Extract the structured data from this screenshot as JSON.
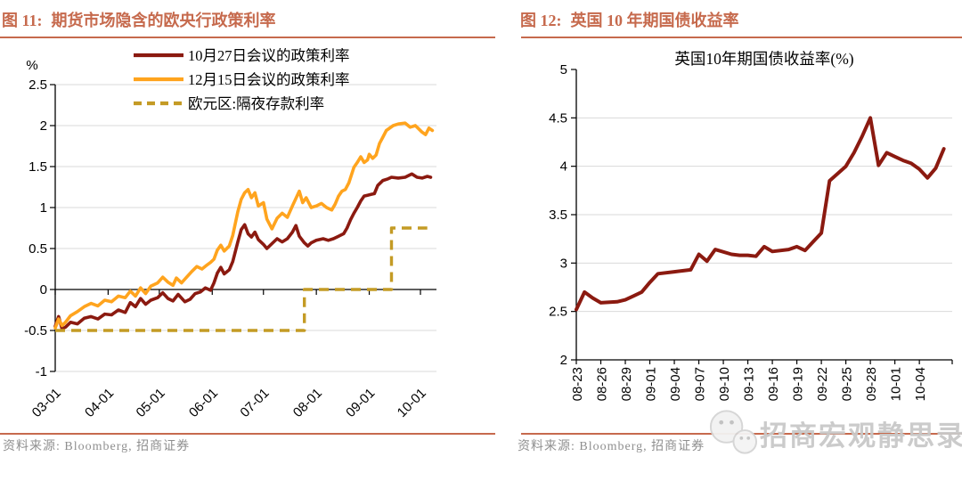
{
  "page": {
    "background": "#FFFFFF",
    "accent_color": "#C66A4D"
  },
  "panels": [
    {
      "figure_label": "图 11:",
      "figure_title": "期货市场隐含的欧央行政策利率",
      "source_note": "资料来源: Bloomberg, 招商证券"
    },
    {
      "figure_label": "图 12:",
      "figure_title": "英国 10 年期国债收益率",
      "source_note": "资料来源: Bloomberg, 招商证券"
    }
  ],
  "watermark": {
    "text": "招商宏观静思录",
    "icon": "wechat-logo",
    "color": "#C9C9C9"
  },
  "chart_data": [
    {
      "type": "line",
      "title": "期货市场隐含的欧央行政策利率",
      "ylabel": "%",
      "ylim": [
        -1,
        2.5
      ],
      "grid": true,
      "legend_position": "top-center",
      "x_unit": "days since 03-01",
      "yticks": [
        {
          "label": "2.5",
          "v": 2.5
        },
        {
          "label": "2",
          "v": 2
        },
        {
          "label": "1.5",
          "v": 1.5
        },
        {
          "label": "1",
          "v": 1
        },
        {
          "label": "0.5",
          "v": 0.5
        },
        {
          "label": "0",
          "v": 0
        },
        {
          "label": "-0.5",
          "v": -0.5
        },
        {
          "label": "-1",
          "v": -1
        }
      ],
      "xticks": [
        {
          "label": "03-01",
          "day": 0
        },
        {
          "label": "04-01",
          "day": 31
        },
        {
          "label": "05-01",
          "day": 61
        },
        {
          "label": "06-01",
          "day": 92
        },
        {
          "label": "07-01",
          "day": 122
        },
        {
          "label": "08-01",
          "day": 153
        },
        {
          "label": "09-01",
          "day": 184
        },
        {
          "label": "10-01",
          "day": 214
        }
      ],
      "series": [
        {
          "name": "10月27日会议的政策利率",
          "color": "#8B1A10",
          "dash": "",
          "width": 3.6,
          "points": [
            [
              0,
              -0.45
            ],
            [
              2,
              -0.33
            ],
            [
              4,
              -0.48
            ],
            [
              6,
              -0.46
            ],
            [
              9,
              -0.4
            ],
            [
              13,
              -0.42
            ],
            [
              17,
              -0.35
            ],
            [
              21,
              -0.33
            ],
            [
              25,
              -0.36
            ],
            [
              29,
              -0.3
            ],
            [
              33,
              -0.31
            ],
            [
              37,
              -0.25
            ],
            [
              41,
              -0.28
            ],
            [
              44,
              -0.16
            ],
            [
              47,
              -0.21
            ],
            [
              50,
              -0.11
            ],
            [
              53,
              -0.18
            ],
            [
              56,
              -0.13
            ],
            [
              60,
              -0.1
            ],
            [
              63,
              -0.04
            ],
            [
              66,
              -0.11
            ],
            [
              69,
              -0.14
            ],
            [
              72,
              -0.06
            ],
            [
              76,
              -0.15
            ],
            [
              79,
              -0.12
            ],
            [
              82,
              -0.05
            ],
            [
              85,
              -0.03
            ],
            [
              88,
              0.02
            ],
            [
              91,
              -0.01
            ],
            [
              93,
              0.08
            ],
            [
              95,
              0.2
            ],
            [
              97,
              0.27
            ],
            [
              99,
              0.19
            ],
            [
              102,
              0.24
            ],
            [
              104,
              0.34
            ],
            [
              107,
              0.58
            ],
            [
              109,
              0.73
            ],
            [
              111,
              0.79
            ],
            [
              113,
              0.68
            ],
            [
              115,
              0.64
            ],
            [
              117,
              0.7
            ],
            [
              119,
              0.61
            ],
            [
              122,
              0.55
            ],
            [
              124,
              0.5
            ],
            [
              127,
              0.56
            ],
            [
              130,
              0.62
            ],
            [
              133,
              0.58
            ],
            [
              136,
              0.62
            ],
            [
              139,
              0.7
            ],
            [
              141,
              0.78
            ],
            [
              143,
              0.65
            ],
            [
              146,
              0.57
            ],
            [
              148,
              0.53
            ],
            [
              150,
              0.57
            ],
            [
              153,
              0.6
            ],
            [
              157,
              0.62
            ],
            [
              160,
              0.6
            ],
            [
              163,
              0.62
            ],
            [
              166,
              0.65
            ],
            [
              169,
              0.68
            ],
            [
              171,
              0.75
            ],
            [
              173,
              0.85
            ],
            [
              175,
              0.93
            ],
            [
              177,
              1.0
            ],
            [
              179,
              1.08
            ],
            [
              181,
              1.14
            ],
            [
              183,
              1.15
            ],
            [
              185,
              1.16
            ],
            [
              187,
              1.17
            ],
            [
              189,
              1.27
            ],
            [
              192,
              1.33
            ],
            [
              195,
              1.35
            ],
            [
              197,
              1.37
            ],
            [
              201,
              1.36
            ],
            [
              205,
              1.37
            ],
            [
              209,
              1.41
            ],
            [
              212,
              1.37
            ],
            [
              215,
              1.36
            ],
            [
              218,
              1.38
            ],
            [
              220,
              1.37
            ]
          ]
        },
        {
          "name": "12月15日会议的政策利率",
          "color": "#FFA41E",
          "dash": "",
          "width": 3.6,
          "points": [
            [
              0,
              -0.47
            ],
            [
              2,
              -0.36
            ],
            [
              4,
              -0.44
            ],
            [
              6,
              -0.4
            ],
            [
              9,
              -0.32
            ],
            [
              13,
              -0.27
            ],
            [
              17,
              -0.21
            ],
            [
              21,
              -0.17
            ],
            [
              25,
              -0.2
            ],
            [
              29,
              -0.13
            ],
            [
              33,
              -0.15
            ],
            [
              37,
              -0.08
            ],
            [
              41,
              -0.1
            ],
            [
              44,
              -0.02
            ],
            [
              47,
              -0.08
            ],
            [
              50,
              0.02
            ],
            [
              53,
              -0.05
            ],
            [
              56,
              0.04
            ],
            [
              60,
              0.08
            ],
            [
              63,
              0.15
            ],
            [
              66,
              0.09
            ],
            [
              69,
              0.05
            ],
            [
              71,
              0.14
            ],
            [
              74,
              0.08
            ],
            [
              77,
              0.15
            ],
            [
              80,
              0.22
            ],
            [
              83,
              0.28
            ],
            [
              86,
              0.25
            ],
            [
              89,
              0.3
            ],
            [
              91,
              0.33
            ],
            [
              93,
              0.37
            ],
            [
              95,
              0.48
            ],
            [
              97,
              0.54
            ],
            [
              99,
              0.47
            ],
            [
              102,
              0.53
            ],
            [
              104,
              0.66
            ],
            [
              107,
              0.95
            ],
            [
              109,
              1.1
            ],
            [
              111,
              1.18
            ],
            [
              113,
              1.22
            ],
            [
              115,
              1.12
            ],
            [
              117,
              1.18
            ],
            [
              119,
              1.02
            ],
            [
              122,
              1.06
            ],
            [
              124,
              0.86
            ],
            [
              127,
              0.74
            ],
            [
              130,
              0.87
            ],
            [
              133,
              0.93
            ],
            [
              136,
              0.88
            ],
            [
              139,
              1.02
            ],
            [
              143,
              1.2
            ],
            [
              145,
              1.06
            ],
            [
              147,
              1.12
            ],
            [
              150,
              1.0
            ],
            [
              153,
              1.02
            ],
            [
              156,
              1.05
            ],
            [
              159,
              1.0
            ],
            [
              162,
              0.97
            ],
            [
              164,
              1.04
            ],
            [
              166,
              1.14
            ],
            [
              168,
              1.2
            ],
            [
              170,
              1.22
            ],
            [
              172,
              1.3
            ],
            [
              175,
              1.49
            ],
            [
              177,
              1.55
            ],
            [
              179,
              1.62
            ],
            [
              181,
              1.55
            ],
            [
              183,
              1.58
            ],
            [
              184,
              1.65
            ],
            [
              186,
              1.6
            ],
            [
              188,
              1.64
            ],
            [
              190,
              1.78
            ],
            [
              192,
              1.86
            ],
            [
              194,
              1.94
            ],
            [
              198,
              2.0
            ],
            [
              201,
              2.02
            ],
            [
              205,
              2.03
            ],
            [
              208,
              1.98
            ],
            [
              211,
              2.0
            ],
            [
              213,
              1.96
            ],
            [
              215,
              1.92
            ],
            [
              217,
              1.89
            ],
            [
              219,
              1.97
            ],
            [
              221,
              1.94
            ]
          ]
        },
        {
          "name": "欧元区:隔夜存款利率",
          "color": "#C49B25",
          "dash": "11 7",
          "width": 3.4,
          "points": [
            [
              0,
              -0.5
            ],
            [
              146,
              -0.5
            ],
            [
              146,
              0
            ],
            [
              197,
              0
            ],
            [
              197,
              0.75
            ],
            [
              218,
              0.75
            ]
          ]
        }
      ]
    },
    {
      "type": "line",
      "title": "英国10年期国债收益率(%)",
      "ylim": [
        2,
        5
      ],
      "grid": true,
      "x_unit": "days since 08-23",
      "yticks": [
        {
          "label": "5",
          "v": 5
        },
        {
          "label": "4.5",
          "v": 4.5
        },
        {
          "label": "4",
          "v": 4
        },
        {
          "label": "3.5",
          "v": 3.5
        },
        {
          "label": "3",
          "v": 3
        },
        {
          "label": "2.5",
          "v": 2.5
        },
        {
          "label": "2",
          "v": 2
        }
      ],
      "xticks": [
        {
          "label": "08-23",
          "day": 0
        },
        {
          "label": "08-26",
          "day": 3
        },
        {
          "label": "08-29",
          "day": 6
        },
        {
          "label": "09-01",
          "day": 9
        },
        {
          "label": "09-04",
          "day": 12
        },
        {
          "label": "09-07",
          "day": 15
        },
        {
          "label": "09-10",
          "day": 18
        },
        {
          "label": "09-13",
          "day": 21
        },
        {
          "label": "09-16",
          "day": 24
        },
        {
          "label": "09-19",
          "day": 27
        },
        {
          "label": "09-22",
          "day": 30
        },
        {
          "label": "09-25",
          "day": 33
        },
        {
          "label": "09-28",
          "day": 36
        },
        {
          "label": "10-01",
          "day": 39
        },
        {
          "label": "10-04",
          "day": 42
        }
      ],
      "series": [
        {
          "name": "英国10年期国债收益率",
          "color": "#8B1A10",
          "dash": "",
          "width": 4,
          "points": [
            [
              0,
              2.52
            ],
            [
              1,
              2.7
            ],
            [
              2,
              2.64
            ],
            [
              3,
              2.59
            ],
            [
              5,
              2.6
            ],
            [
              6,
              2.62
            ],
            [
              7,
              2.66
            ],
            [
              8,
              2.7
            ],
            [
              9,
              2.8
            ],
            [
              10,
              2.89
            ],
            [
              12,
              2.91
            ],
            [
              13,
              2.92
            ],
            [
              14,
              2.93
            ],
            [
              15,
              3.09
            ],
            [
              16,
              3.02
            ],
            [
              17,
              3.14
            ],
            [
              19,
              3.09
            ],
            [
              20,
              3.08
            ],
            [
              21,
              3.08
            ],
            [
              22,
              3.07
            ],
            [
              23,
              3.17
            ],
            [
              24,
              3.12
            ],
            [
              26,
              3.14
            ],
            [
              27,
              3.17
            ],
            [
              28,
              3.13
            ],
            [
              29,
              3.22
            ],
            [
              30,
              3.31
            ],
            [
              31,
              3.85
            ],
            [
              33,
              4.0
            ],
            [
              34,
              4.14
            ],
            [
              35,
              4.31
            ],
            [
              36,
              4.5
            ],
            [
              37,
              4.01
            ],
            [
              38,
              4.14
            ],
            [
              39,
              4.1
            ],
            [
              40,
              4.06
            ],
            [
              41,
              4.03
            ],
            [
              42,
              3.97
            ],
            [
              43,
              3.88
            ],
            [
              44,
              3.98
            ],
            [
              45,
              4.18
            ]
          ]
        }
      ]
    }
  ]
}
